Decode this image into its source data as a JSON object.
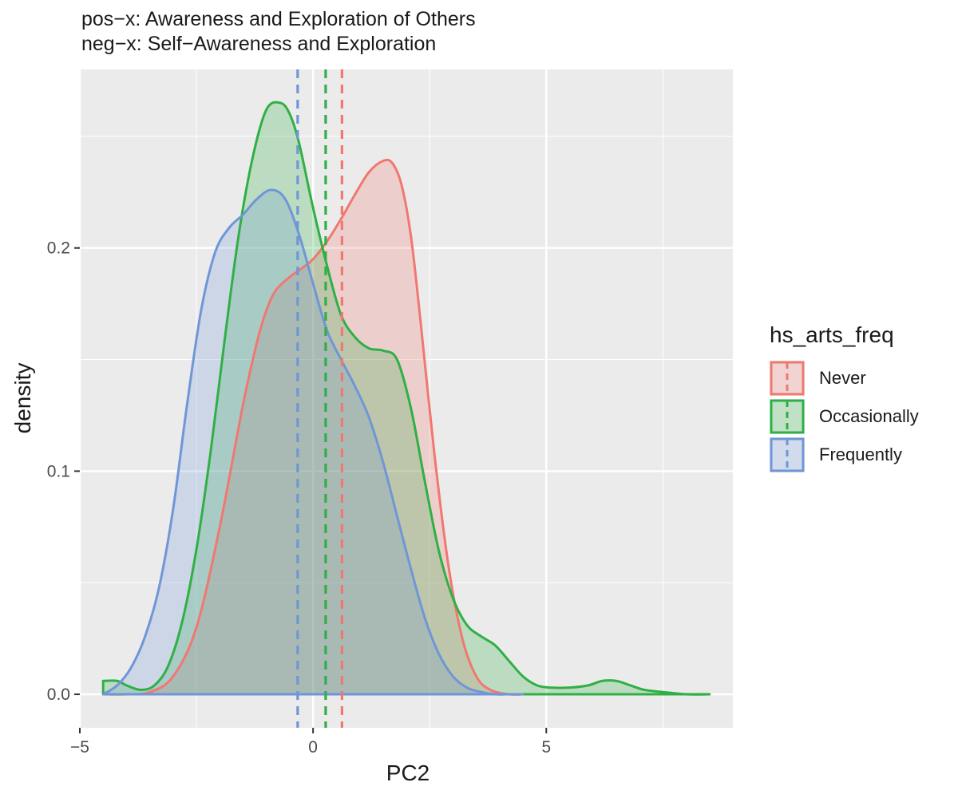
{
  "title": {
    "line1": "pos−x: Awareness and Exploration of Others",
    "line2": "neg−x: Self−Awareness and Exploration"
  },
  "legend": {
    "title": "hs_arts_freq",
    "items": [
      {
        "label": "Never",
        "color": "#F07870"
      },
      {
        "label": "Occasionally",
        "color": "#2FB045"
      },
      {
        "label": "Frequently",
        "color": "#6F96D6"
      }
    ]
  },
  "chart_data": {
    "type": "area",
    "subtype": "density",
    "xlabel": "PC2",
    "ylabel": "density",
    "xlim": [
      -5,
      9
    ],
    "ylim": [
      -0.015,
      0.28
    ],
    "xticks": [
      -5,
      0,
      5
    ],
    "xtick_labels": [
      "−5",
      "0",
      "5"
    ],
    "yticks": [
      0.0,
      0.1,
      0.2
    ],
    "ytick_labels": [
      "0.0",
      "0.1",
      "0.2"
    ],
    "grid": true,
    "legend_position": "right",
    "series": [
      {
        "name": "Never",
        "color": "#F07870",
        "mean": 0.62,
        "x": [
          -4.5,
          -4.0,
          -3.5,
          -3.0,
          -2.5,
          -2.0,
          -1.5,
          -1.2,
          -1.0,
          -0.8,
          -0.5,
          -0.3,
          0.0,
          0.3,
          0.6,
          0.9,
          1.2,
          1.5,
          1.7,
          1.9,
          2.1,
          2.3,
          2.6,
          2.9,
          3.2,
          3.5,
          3.8,
          4.2,
          4.5
        ],
        "y": [
          0.0,
          0.0,
          0.001,
          0.008,
          0.03,
          0.075,
          0.13,
          0.158,
          0.172,
          0.181,
          0.187,
          0.19,
          0.195,
          0.203,
          0.213,
          0.224,
          0.234,
          0.239,
          0.238,
          0.228,
          0.205,
          0.168,
          0.108,
          0.058,
          0.025,
          0.008,
          0.002,
          0.0,
          0.0
        ]
      },
      {
        "name": "Occasionally",
        "color": "#2FB045",
        "mean": 0.27,
        "x": [
          -4.5,
          -4.2,
          -4.0,
          -3.7,
          -3.4,
          -3.1,
          -2.8,
          -2.5,
          -2.2,
          -1.9,
          -1.6,
          -1.3,
          -1.0,
          -0.7,
          -0.5,
          -0.3,
          0.0,
          0.3,
          0.6,
          0.9,
          1.2,
          1.5,
          1.8,
          2.1,
          2.4,
          2.7,
          3.0,
          3.3,
          3.6,
          3.9,
          4.2,
          4.5,
          4.8,
          5.1,
          5.5,
          5.9,
          6.2,
          6.5,
          6.8,
          7.1,
          7.5,
          8.0,
          8.5
        ],
        "y": [
          0.006,
          0.006,
          0.004,
          0.002,
          0.004,
          0.013,
          0.033,
          0.065,
          0.108,
          0.158,
          0.205,
          0.24,
          0.262,
          0.265,
          0.26,
          0.247,
          0.218,
          0.192,
          0.17,
          0.16,
          0.155,
          0.154,
          0.15,
          0.128,
          0.095,
          0.064,
          0.043,
          0.031,
          0.026,
          0.022,
          0.015,
          0.008,
          0.004,
          0.003,
          0.003,
          0.004,
          0.006,
          0.006,
          0.004,
          0.002,
          0.001,
          0.0,
          0.0
        ]
      },
      {
        "name": "Frequently",
        "color": "#6F96D6",
        "mean": -0.33,
        "x": [
          -4.5,
          -4.2,
          -3.9,
          -3.6,
          -3.3,
          -3.0,
          -2.7,
          -2.4,
          -2.1,
          -1.8,
          -1.5,
          -1.2,
          -0.9,
          -0.6,
          -0.3,
          0.0,
          0.3,
          0.6,
          0.9,
          1.2,
          1.5,
          1.8,
          2.1,
          2.4,
          2.7,
          3.0,
          3.3,
          3.6,
          3.9,
          4.2,
          4.5
        ],
        "y": [
          0.0,
          0.004,
          0.012,
          0.026,
          0.048,
          0.083,
          0.13,
          0.172,
          0.198,
          0.209,
          0.215,
          0.222,
          0.226,
          0.222,
          0.206,
          0.184,
          0.163,
          0.15,
          0.138,
          0.124,
          0.104,
          0.08,
          0.056,
          0.034,
          0.018,
          0.008,
          0.003,
          0.001,
          0.0,
          0.0,
          0.0
        ]
      }
    ]
  }
}
